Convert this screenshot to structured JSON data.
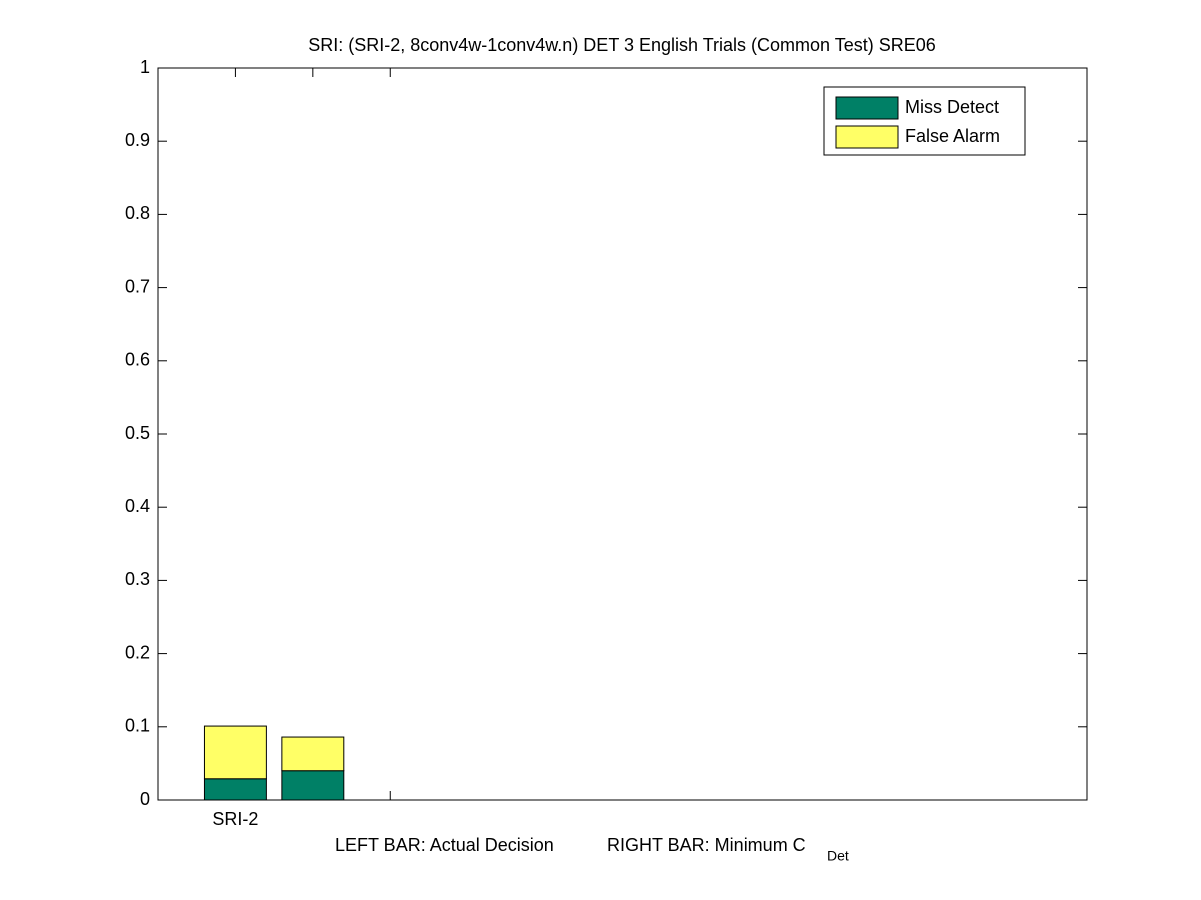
{
  "chart_data": {
    "type": "stacked_bar",
    "title": "SRI: (SRI-2, 8conv4w-1conv4w.n) DET 3 English Trials (Common Test) SRE06",
    "xlabel": {
      "left": "LEFT BAR: Actual Decision",
      "right": "RIGHT BAR: Minimum C",
      "subscript": "Det"
    },
    "x": [
      1,
      2
    ],
    "xlim": [
      0,
      12
    ],
    "xticks": [
      {
        "value": 1,
        "label": "SRI-2"
      },
      {
        "value": 2,
        "label": null
      },
      {
        "value": 3,
        "label": null
      }
    ],
    "ylim": [
      0,
      1
    ],
    "yticks": [
      0,
      0.1,
      0.2,
      0.3,
      0.4,
      0.5,
      0.6,
      0.7,
      0.8,
      0.9,
      1
    ],
    "series": [
      {
        "name": "Miss Detect",
        "color": "#008066",
        "values": [
          0.029,
          0.04
        ]
      },
      {
        "name": "False Alarm",
        "color": "#ffff66",
        "values": [
          0.072,
          0.046
        ]
      }
    ],
    "legend": "upper right",
    "grid": false
  }
}
